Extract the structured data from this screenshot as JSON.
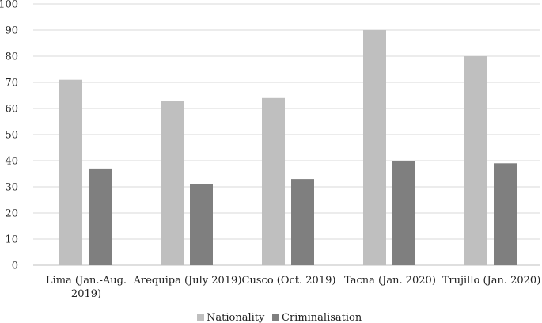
{
  "chart_data": {
    "type": "bar",
    "categories": [
      [
        "Lima (Jan.-Aug.",
        "2019)"
      ],
      [
        "Arequipa (July 2019)"
      ],
      [
        "Cusco (Oct. 2019)"
      ],
      [
        "Tacna (Jan. 2020)"
      ],
      [
        "Trujillo (Jan. 2020)"
      ]
    ],
    "series": [
      {
        "name": "Nationality",
        "values": [
          71,
          63,
          64,
          90,
          80
        ],
        "color": "#bfbfbf"
      },
      {
        "name": "Criminalisation",
        "values": [
          37,
          31,
          33,
          40,
          39
        ],
        "color": "#7f7f7f"
      }
    ],
    "ylim": [
      0,
      100
    ],
    "yticks": [
      0,
      10,
      20,
      30,
      40,
      50,
      60,
      70,
      80,
      90,
      100
    ],
    "grid": true,
    "legend": "bottom-center",
    "title": "",
    "xlabel": "",
    "ylabel": ""
  }
}
